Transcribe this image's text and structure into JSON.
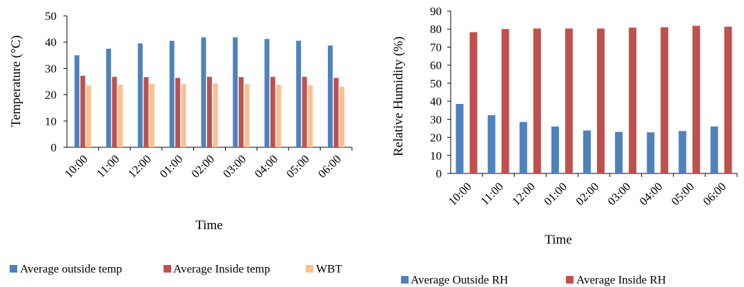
{
  "chart_data": [
    {
      "type": "bar",
      "xlabel": "Time",
      "ylabel": "Temperature (°C)",
      "ylim": [
        0,
        50
      ],
      "yticks": [
        0,
        10,
        20,
        30,
        40,
        50
      ],
      "categories": [
        "10:00",
        "11:00",
        "12:00",
        "01:00",
        "02:00",
        "03:00",
        "04:00",
        "05:00",
        "06:00"
      ],
      "series": [
        {
          "name": "Average outside temp",
          "color": "#4f81bd",
          "values": [
            35,
            37.5,
            39.5,
            40.5,
            41.8,
            41.8,
            41.2,
            40.5,
            38.7
          ]
        },
        {
          "name": "Average Inside temp",
          "color": "#c0504d",
          "values": [
            27.2,
            26.8,
            26.7,
            26.4,
            26.8,
            26.7,
            26.8,
            26.8,
            26.4
          ]
        },
        {
          "name": "WBT",
          "color": "#fac090",
          "values": [
            23.5,
            23.8,
            24.2,
            24.0,
            24.3,
            24.0,
            23.8,
            23.5,
            23.0
          ]
        }
      ],
      "legend_position": "bottom"
    },
    {
      "type": "bar",
      "xlabel": "Time",
      "ylabel": "Relative Humidity (%)",
      "ylim": [
        0,
        90
      ],
      "yticks": [
        0,
        10,
        20,
        30,
        40,
        50,
        60,
        70,
        80,
        90
      ],
      "categories": [
        "10:00",
        "11:00",
        "12:00",
        "01:00",
        "02:00",
        "03:00",
        "04:00",
        "05:00",
        "06:00"
      ],
      "series": [
        {
          "name": "Average Outside RH",
          "color": "#4f81bd",
          "values": [
            38.5,
            32.3,
            28.5,
            26.0,
            23.8,
            23.0,
            22.8,
            23.5,
            26.0
          ]
        },
        {
          "name": "Average Inside RH",
          "color": "#c0504d",
          "values": [
            78.3,
            80.0,
            80.3,
            80.3,
            80.3,
            80.8,
            81.0,
            81.8,
            81.3
          ]
        }
      ],
      "legend_position": "bottom"
    }
  ]
}
